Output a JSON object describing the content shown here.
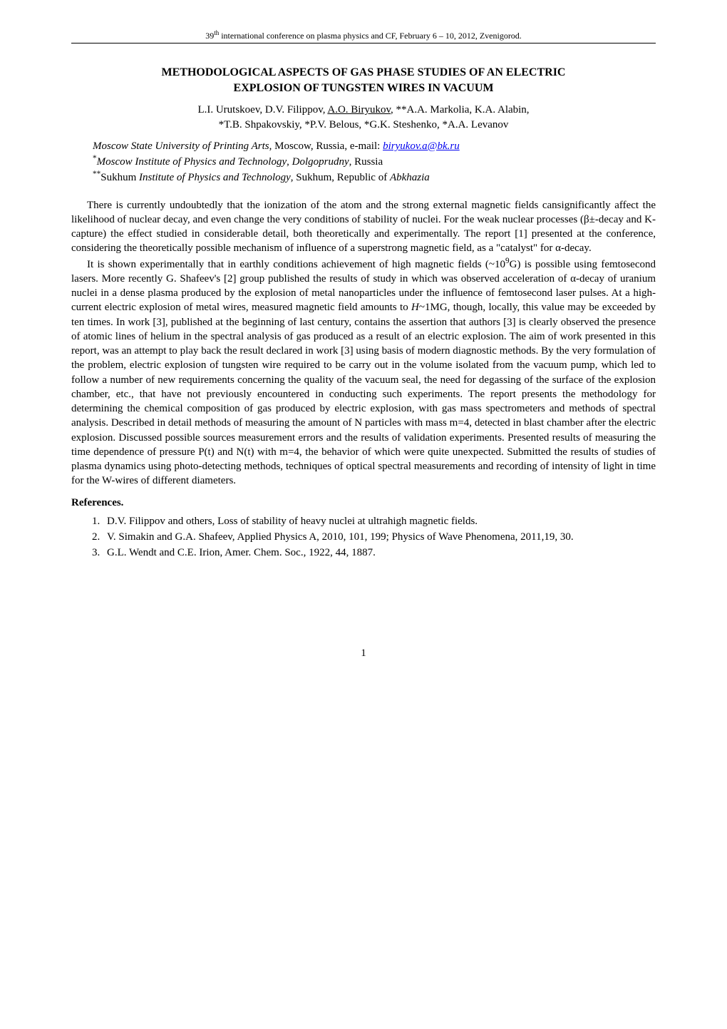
{
  "header": {
    "text": "39th international conference on plasma physics and CF, February  6 – 10, 2012, Zvenigorod."
  },
  "title": {
    "line1": "METHODOLOGICAL ASPECTS OF GAS PHASE STUDIES OF AN ELECTRIC",
    "line2": "EXPLOSION OF TUNGSTEN WIRES IN VACUUM"
  },
  "authors": {
    "line1_pre": "L.I. Urutskoev, D.V. Filippov, ",
    "line1_underlined": "A.O. Biryukov",
    "line1_post": ", **A.A. Markolia, K.A. Alabin,",
    "line2": "*T.B. Shpakovskiy, *P.V. Belous, *G.K. Steshenko, *A.A. Levanov"
  },
  "affiliations": {
    "a1_italic1": "Moscow State University of Printing Arts",
    "a1_mid": ", Moscow, Russia, e-mail: ",
    "a1_email": "biryukov.a@bk.ru",
    "a2_sup": "*",
    "a2_italic1": "Moscow Institute of Physics and Technology",
    "a2_mid": ", ",
    "a2_italic2": "Dolgoprudny",
    "a2_post": ", Russia",
    "a3_sup": "**",
    "a3_pre": "Sukhum ",
    "a3_italic1": "Institute of Physics and Technology",
    "a3_mid": ", Sukhum, Republic of ",
    "a3_italic2": "Abkhazia"
  },
  "body": {
    "p1": "There is currently undoubtedly that the ionization of the atom and the strong external magnetic fields cansignificantly affect the likelihood of nuclear decay, and even change the very conditions of stability of nuclei. For the weak nuclear processes (β±-decay and K-capture) the effect studied in considerable detail, both theoretically and experimentally. The report [1] presented at the conference, considering the theoretically possible mechanism of influence of a superstrong magnetic field, as a \"catalyst\" for α-decay.",
    "p2_a": "It is shown experimentally that in earthly conditions achievement of high magnetic fields (~10",
    "p2_sup": "9",
    "p2_b": "G) is possible using femtosecond lasers. More recently G. Shafeev's [2] group published the results of study in which was observed acceleration of α-decay of uranium nuclei in a dense plasma produced by the explosion of metal nanoparticles under the influence of femtosecond laser pulses. At a high-current electric explosion of metal wires, measured magnetic field amounts to ",
    "p2_italic": "H",
    "p2_c": "~1MG, though, locally, this value may be exceeded by ten times. In work [3], published at the beginning of last century, contains the assertion that authors [3] is clearly observed the presence of atomic lines of helium in the spectral analysis of gas produced as a result of an electric explosion. The aim of work presented in this report, was an attempt to play back the result declared in work [3] using basis of modern diagnostic methods. By the very formulation of the problem, electric explosion of tungsten wire required to be carry out in the volume isolated from the vacuum pump, which led to follow a number of new requirements concerning the quality of the vacuum seal, the need for degassing of the surface of the explosion chamber, etc., that have not previously encountered in conducting such experiments. The report presents the methodology for determining the chemical composition of gas produced by electric explosion, with gas mass spectrometers and methods of spectral analysis. Described in detail methods of measuring the amount of N particles with mass m=4, detected in blast chamber after the electric explosion. Discussed possible sources measurement errors and the results of validation experiments. Presented results of measuring the time dependence of pressure P(t) and N(t) with m=4, the behavior of which were quite unexpected. Submitted the results of studies of plasma dynamics using photo-detecting methods, techniques of optical spectral measurements and recording of intensity of light in time for the W-wires of different diameters."
  },
  "references": {
    "heading": "References.",
    "items": [
      "D.V. Filippov and others, Loss of stability of heavy nuclei at ultrahigh magnetic fields.",
      "V. Simakin and G.A. Shafeev, Applied Physics A, 2010, 101, 199; Physics of Wave Phenomena, 2011,19, 30.",
      "G.L. Wendt and C.E. Irion, Amer. Chem. Soc., 1922, 44, 1887."
    ]
  },
  "page_number": "1"
}
